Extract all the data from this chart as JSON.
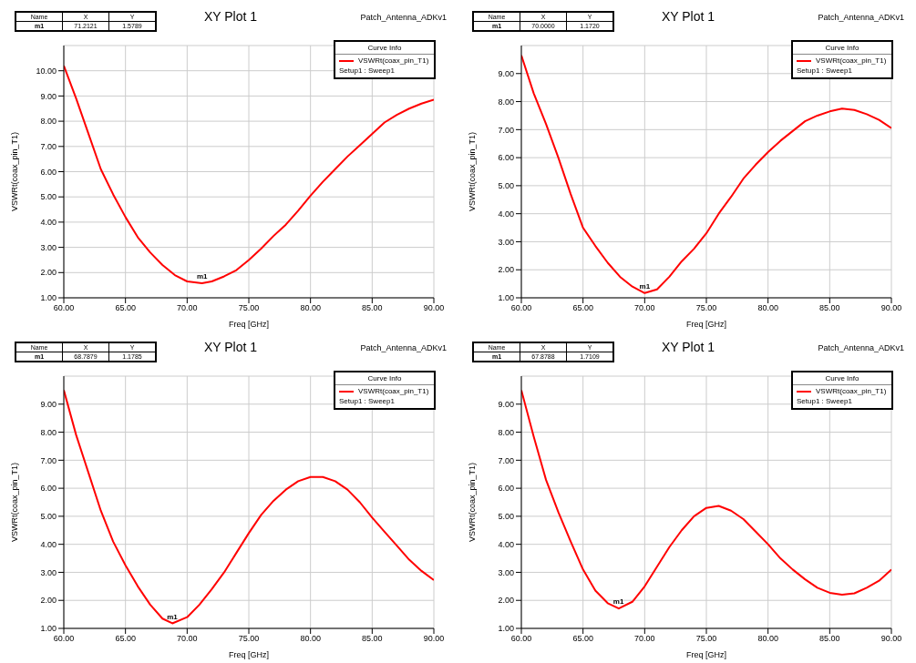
{
  "chart_data": [
    {
      "type": "line",
      "title": "XY Plot 1",
      "xlabel": "Freq [GHz]",
      "ylabel": "VSWRt(coax_pin_T1)",
      "legend_title": "Curve Info",
      "legend": "top right",
      "grid": true,
      "x": [
        60,
        61,
        62,
        63,
        64,
        65,
        66,
        67,
        68,
        69,
        70,
        71.2,
        72,
        73,
        74,
        75,
        76,
        77,
        78,
        79,
        80,
        81,
        82,
        83,
        84,
        85,
        86,
        87,
        88,
        89,
        90
      ],
      "series": [
        {
          "name": "VSWRt(coax_pin_T1)",
          "color": "#ff0000",
          "values": [
            10.2,
            8.9,
            7.5,
            6.1,
            5.1,
            4.2,
            3.4,
            2.8,
            2.3,
            1.9,
            1.65,
            1.58,
            1.65,
            1.85,
            2.1,
            2.5,
            2.95,
            3.45,
            3.9,
            4.45,
            5.05,
            5.6,
            6.1,
            6.6,
            7.05,
            7.5,
            7.95,
            8.25,
            8.5,
            8.7,
            8.85
          ]
        }
      ],
      "xlim": [
        60,
        90
      ],
      "xticks": [
        {
          "value": 60,
          "label": "60.00"
        },
        {
          "value": 65,
          "label": "65.00"
        },
        {
          "value": 70,
          "label": "70.00"
        },
        {
          "value": 75,
          "label": "75.00"
        },
        {
          "value": 80,
          "label": "80.00"
        },
        {
          "value": 85,
          "label": "85.00"
        },
        {
          "value": 90,
          "label": "90.00"
        }
      ],
      "ylim": [
        1,
        11
      ],
      "yticks": [
        {
          "value": 1,
          "label": "1.00"
        },
        {
          "value": 2,
          "label": "2.00"
        },
        {
          "value": 3,
          "label": "3.00"
        },
        {
          "value": 4,
          "label": "4.00"
        },
        {
          "value": 5,
          "label": "5.00"
        },
        {
          "value": 6,
          "label": "6.00"
        },
        {
          "value": 7,
          "label": "7.00"
        },
        {
          "value": 8,
          "label": "8.00"
        },
        {
          "value": 9,
          "label": "9.00"
        },
        {
          "value": 10,
          "label": "10.00"
        }
      ],
      "annotations": [
        "Name",
        "X",
        "Y",
        "m1",
        "71.2121",
        "1.5789",
        "Patch_Antenna_ADKv1",
        "Setup1 : Sweep1",
        {
          "text": "m1",
          "x": 71.2121,
          "y": 1.5789
        }
      ]
    },
    {
      "type": "line",
      "title": "XY Plot 1",
      "xlabel": "Freq [GHz]",
      "ylabel": "VSWRt(coax_pin_T1)",
      "legend_title": "Curve Info",
      "legend": "top right",
      "grid": true,
      "x": [
        60,
        61,
        62,
        63,
        64,
        65,
        66,
        67,
        68,
        69,
        70,
        71,
        72,
        73,
        74,
        75,
        76,
        77,
        78,
        79,
        80,
        81,
        82,
        83,
        84,
        85,
        86,
        87,
        88,
        89,
        90
      ],
      "series": [
        {
          "name": "VSWRt(coax_pin_T1)",
          "color": "#ff0000",
          "values": [
            9.65,
            8.3,
            7.2,
            6.0,
            4.7,
            3.5,
            2.85,
            2.25,
            1.75,
            1.4,
            1.17,
            1.3,
            1.75,
            2.3,
            2.75,
            3.3,
            4.0,
            4.6,
            5.25,
            5.75,
            6.2,
            6.6,
            6.95,
            7.3,
            7.5,
            7.65,
            7.75,
            7.7,
            7.55,
            7.35,
            7.05
          ]
        }
      ],
      "xlim": [
        60,
        90
      ],
      "xticks": [
        {
          "value": 60,
          "label": "60.00"
        },
        {
          "value": 65,
          "label": "65.00"
        },
        {
          "value": 70,
          "label": "70.00"
        },
        {
          "value": 75,
          "label": "75.00"
        },
        {
          "value": 80,
          "label": "80.00"
        },
        {
          "value": 85,
          "label": "85.00"
        },
        {
          "value": 90,
          "label": "90.00"
        }
      ],
      "ylim": [
        1,
        10
      ],
      "yticks": [
        {
          "value": 1,
          "label": "1.00"
        },
        {
          "value": 2,
          "label": "2.00"
        },
        {
          "value": 3,
          "label": "3.00"
        },
        {
          "value": 4,
          "label": "4.00"
        },
        {
          "value": 5,
          "label": "5.00"
        },
        {
          "value": 6,
          "label": "6.00"
        },
        {
          "value": 7,
          "label": "7.00"
        },
        {
          "value": 8,
          "label": "8.00"
        },
        {
          "value": 9,
          "label": "9.00"
        }
      ],
      "annotations": [
        "Name",
        "X",
        "Y",
        "m1",
        "70.0000",
        "1.1720",
        "Patch_Antenna_ADKv1",
        "Setup1 : Sweep1",
        {
          "text": "m1",
          "x": 70,
          "y": 1.172
        }
      ]
    },
    {
      "type": "line",
      "title": "XY Plot 1",
      "xlabel": "Freq [GHz]",
      "ylabel": "VSWRt(coax_pin_T1)",
      "legend_title": "Curve Info",
      "legend": "top right",
      "grid": true,
      "x": [
        60,
        61,
        62,
        63,
        64,
        65,
        66,
        67,
        68,
        68.8,
        70,
        71,
        72,
        73,
        74,
        75,
        76,
        77,
        78,
        79,
        80,
        81,
        82,
        83,
        84,
        85,
        86,
        87,
        88,
        89,
        90
      ],
      "series": [
        {
          "name": "VSWRt(coax_pin_T1)",
          "color": "#ff0000",
          "values": [
            9.5,
            7.9,
            6.55,
            5.2,
            4.1,
            3.25,
            2.5,
            1.85,
            1.35,
            1.18,
            1.4,
            1.85,
            2.4,
            3.0,
            3.7,
            4.4,
            5.05,
            5.55,
            5.95,
            6.25,
            6.4,
            6.4,
            6.25,
            5.95,
            5.5,
            4.95,
            4.45,
            3.95,
            3.45,
            3.05,
            2.72
          ]
        }
      ],
      "xlim": [
        60,
        90
      ],
      "xticks": [
        {
          "value": 60,
          "label": "60.00"
        },
        {
          "value": 65,
          "label": "65.00"
        },
        {
          "value": 70,
          "label": "70.00"
        },
        {
          "value": 75,
          "label": "75.00"
        },
        {
          "value": 80,
          "label": "80.00"
        },
        {
          "value": 85,
          "label": "85.00"
        },
        {
          "value": 90,
          "label": "90.00"
        }
      ],
      "ylim": [
        1,
        10
      ],
      "yticks": [
        {
          "value": 1,
          "label": "1.00"
        },
        {
          "value": 2,
          "label": "2.00"
        },
        {
          "value": 3,
          "label": "3.00"
        },
        {
          "value": 4,
          "label": "4.00"
        },
        {
          "value": 5,
          "label": "5.00"
        },
        {
          "value": 6,
          "label": "6.00"
        },
        {
          "value": 7,
          "label": "7.00"
        },
        {
          "value": 8,
          "label": "8.00"
        },
        {
          "value": 9,
          "label": "9.00"
        }
      ],
      "annotations": [
        "Name",
        "X",
        "Y",
        "m1",
        "68.7879",
        "1.1785",
        "Patch_Antenna_ADKv1",
        "Setup1 : Sweep1",
        {
          "text": "m1",
          "x": 68.7879,
          "y": 1.1785
        }
      ]
    },
    {
      "type": "line",
      "title": "XY Plot 1",
      "xlabel": "Freq [GHz]",
      "ylabel": "VSWRt(coax_pin_T1)",
      "legend_title": "Curve Info",
      "legend": "top right",
      "grid": true,
      "x": [
        60,
        61,
        62,
        63,
        64,
        65,
        66,
        67,
        67.9,
        69,
        70,
        71,
        72,
        73,
        74,
        75,
        76,
        77,
        78,
        79,
        80,
        81,
        82,
        83,
        84,
        85,
        86,
        87,
        88,
        89,
        90
      ],
      "series": [
        {
          "name": "VSWRt(coax_pin_T1)",
          "color": "#ff0000",
          "values": [
            9.5,
            7.85,
            6.3,
            5.15,
            4.1,
            3.1,
            2.35,
            1.9,
            1.71,
            1.95,
            2.5,
            3.2,
            3.9,
            4.5,
            5.0,
            5.3,
            5.37,
            5.2,
            4.9,
            4.45,
            4.0,
            3.5,
            3.1,
            2.75,
            2.45,
            2.27,
            2.2,
            2.25,
            2.45,
            2.7,
            3.1
          ]
        }
      ],
      "xlim": [
        60,
        90
      ],
      "xticks": [
        {
          "value": 60,
          "label": "60.00"
        },
        {
          "value": 65,
          "label": "65.00"
        },
        {
          "value": 70,
          "label": "70.00"
        },
        {
          "value": 75,
          "label": "75.00"
        },
        {
          "value": 80,
          "label": "80.00"
        },
        {
          "value": 85,
          "label": "85.00"
        },
        {
          "value": 90,
          "label": "90.00"
        }
      ],
      "ylim": [
        1,
        10
      ],
      "yticks": [
        {
          "value": 1,
          "label": "1.00"
        },
        {
          "value": 2,
          "label": "2.00"
        },
        {
          "value": 3,
          "label": "3.00"
        },
        {
          "value": 4,
          "label": "4.00"
        },
        {
          "value": 5,
          "label": "5.00"
        },
        {
          "value": 6,
          "label": "6.00"
        },
        {
          "value": 7,
          "label": "7.00"
        },
        {
          "value": 8,
          "label": "8.00"
        },
        {
          "value": 9,
          "label": "9.00"
        }
      ],
      "annotations": [
        "Name",
        "X",
        "Y",
        "m1",
        "67.8788",
        "1.7109",
        "Patch_Antenna_ADKv1",
        "Setup1 : Sweep1",
        {
          "text": "m1",
          "x": 67.8788,
          "y": 1.7109
        }
      ]
    }
  ]
}
